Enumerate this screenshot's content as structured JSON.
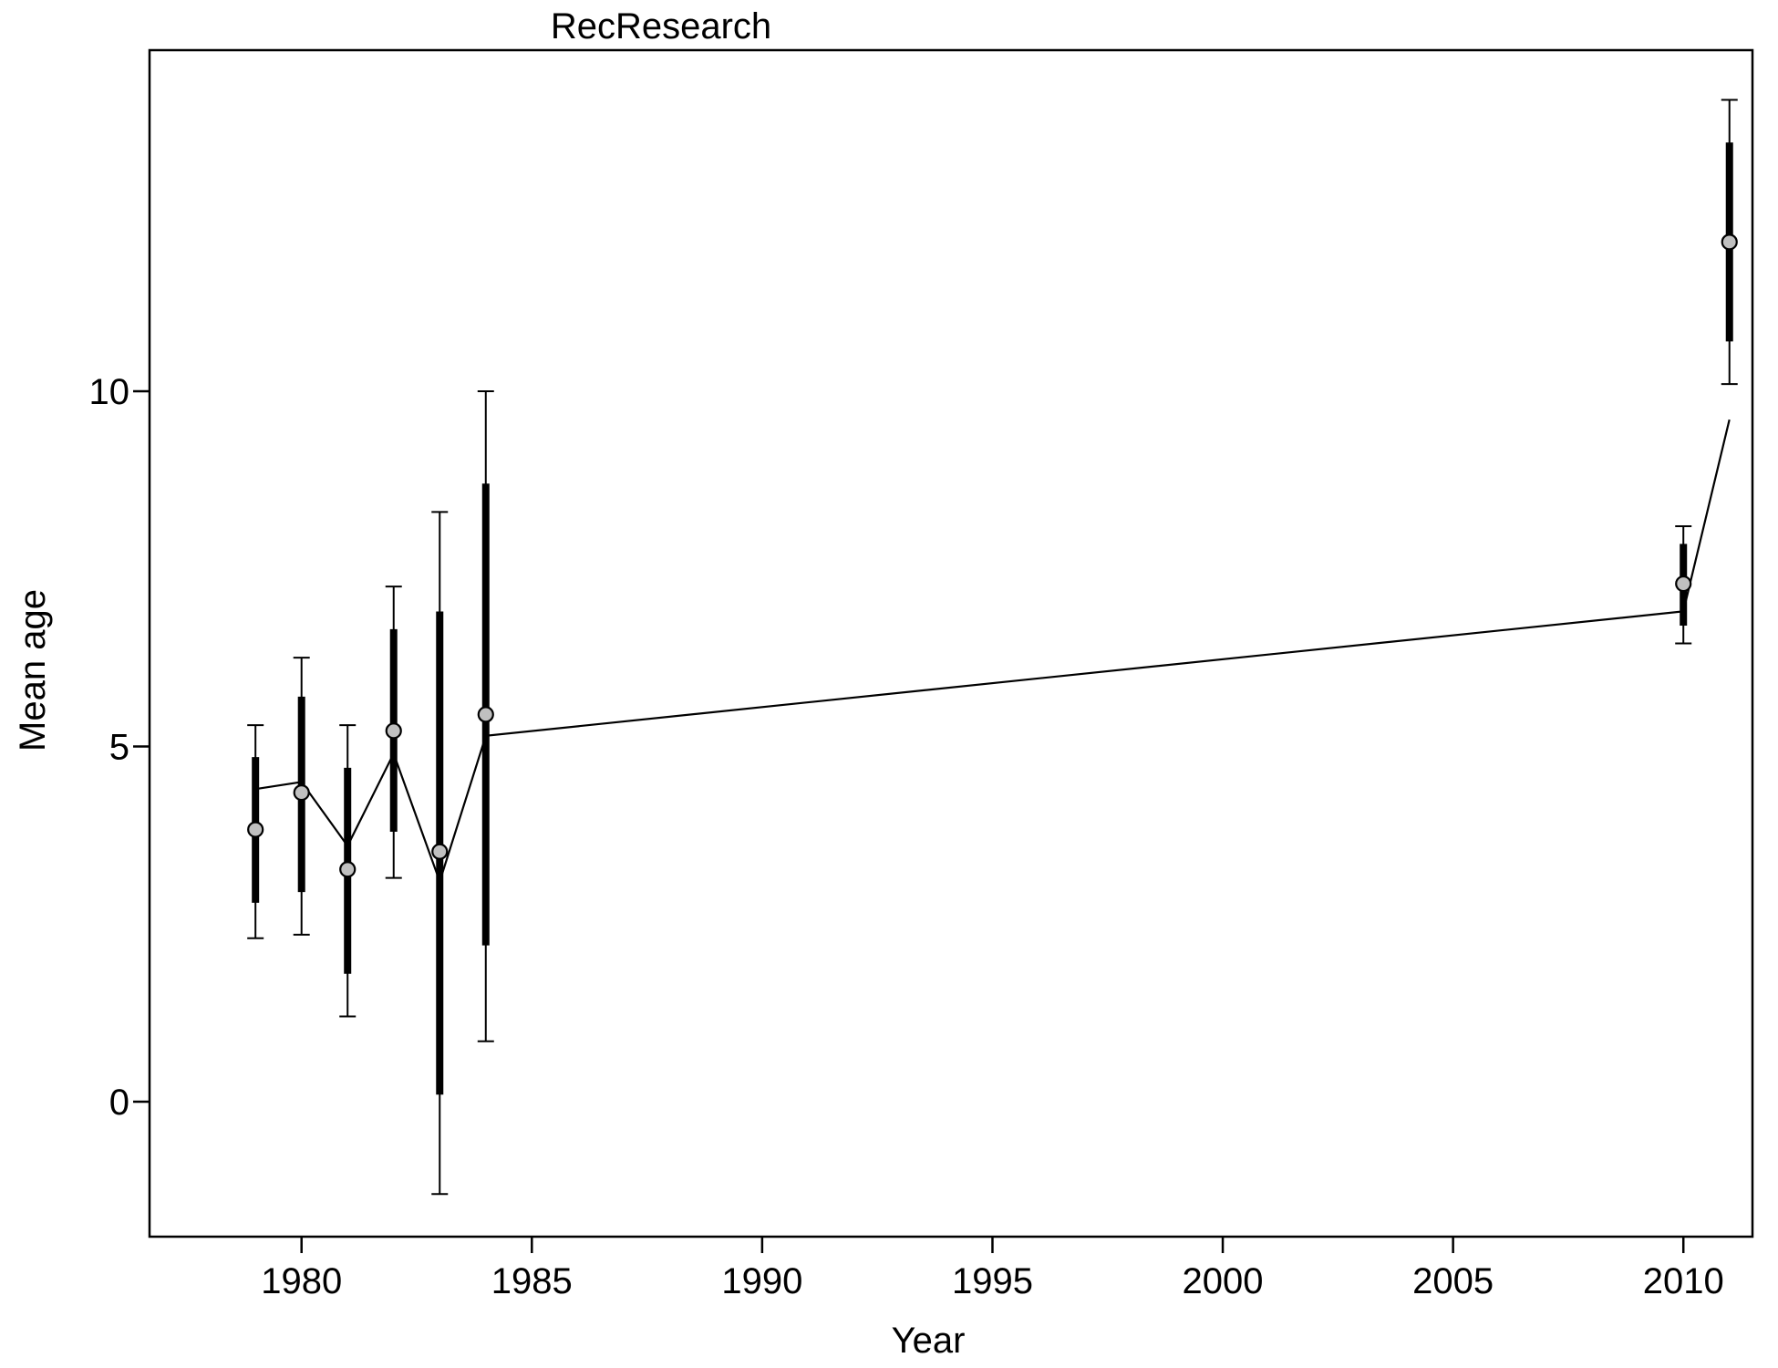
{
  "chart_data": {
    "type": "line",
    "title": "RecResearch",
    "xlabel": "Year",
    "ylabel": "Mean age",
    "xlim": [
      1976.7,
      2011.5
    ],
    "ylim": [
      -1.9,
      14.8
    ],
    "x_ticks": [
      1980,
      1985,
      1990,
      1995,
      2000,
      2005,
      2010
    ],
    "y_ticks": [
      0,
      5,
      10
    ],
    "grid": false,
    "observed": {
      "x": [
        1979,
        1980,
        1981,
        1982,
        1983,
        1984,
        2010,
        2011
      ],
      "y": [
        3.83,
        4.35,
        3.27,
        5.22,
        3.52,
        5.45,
        7.29,
        12.1
      ],
      "inner_low": [
        2.8,
        2.95,
        1.8,
        3.8,
        0.1,
        2.2,
        6.7,
        10.7
      ],
      "inner_high": [
        4.85,
        5.7,
        4.7,
        6.65,
        6.9,
        8.7,
        7.85,
        13.5
      ],
      "outer_low": [
        2.3,
        2.35,
        1.2,
        3.15,
        -1.3,
        0.85,
        6.45,
        10.1
      ],
      "outer_high": [
        5.3,
        6.25,
        5.3,
        7.25,
        8.3,
        10.0,
        8.1,
        14.1
      ]
    },
    "expected": {
      "x": [
        1979,
        1980,
        1981,
        1982,
        1983,
        1984,
        2010,
        2011
      ],
      "y": [
        4.4,
        4.5,
        3.6,
        4.9,
        3.1,
        5.15,
        6.9,
        9.6
      ]
    },
    "colors": {
      "marker_fill": "#c0c0c0",
      "line": "#000000"
    }
  }
}
